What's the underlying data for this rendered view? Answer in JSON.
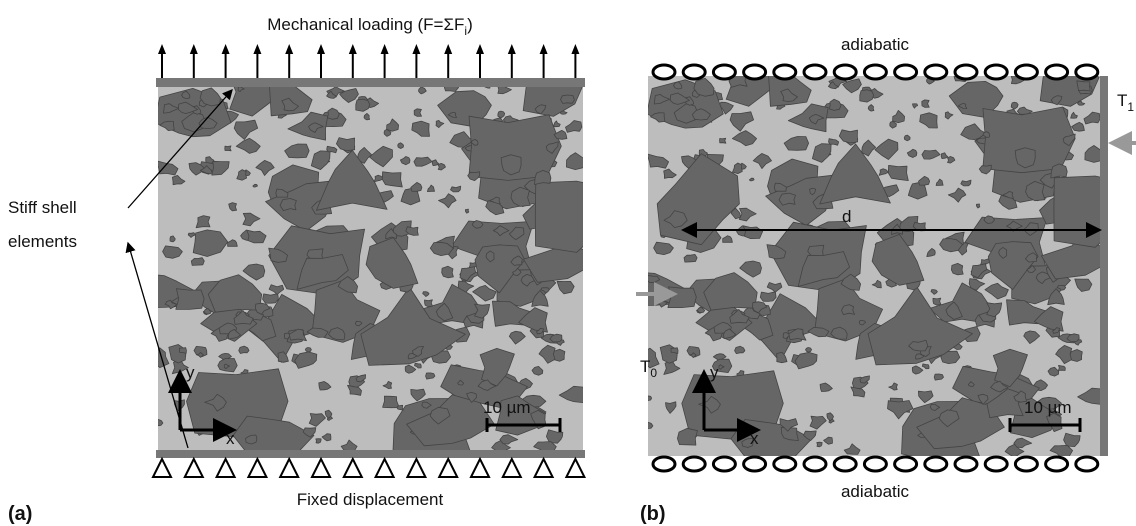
{
  "panel_a": {
    "label": "(a)",
    "loading": {
      "main": "Mechanical loading (F=ΣF",
      "sub": "i",
      "end": ")"
    },
    "shell": [
      "Stiff shell",
      "elements"
    ],
    "bottom": "Fixed displacement",
    "axis_y": "y",
    "axis_x": "x",
    "scale": "10 µm"
  },
  "panel_b": {
    "label": "(b)",
    "top": "adiabatic",
    "bottom": "adiabatic",
    "t1": {
      "main": "T",
      "sub": "1"
    },
    "t0": {
      "main": "T",
      "sub": "0"
    },
    "d": "d",
    "axis_y": "y",
    "axis_x": "x",
    "scale": "10 µm"
  }
}
